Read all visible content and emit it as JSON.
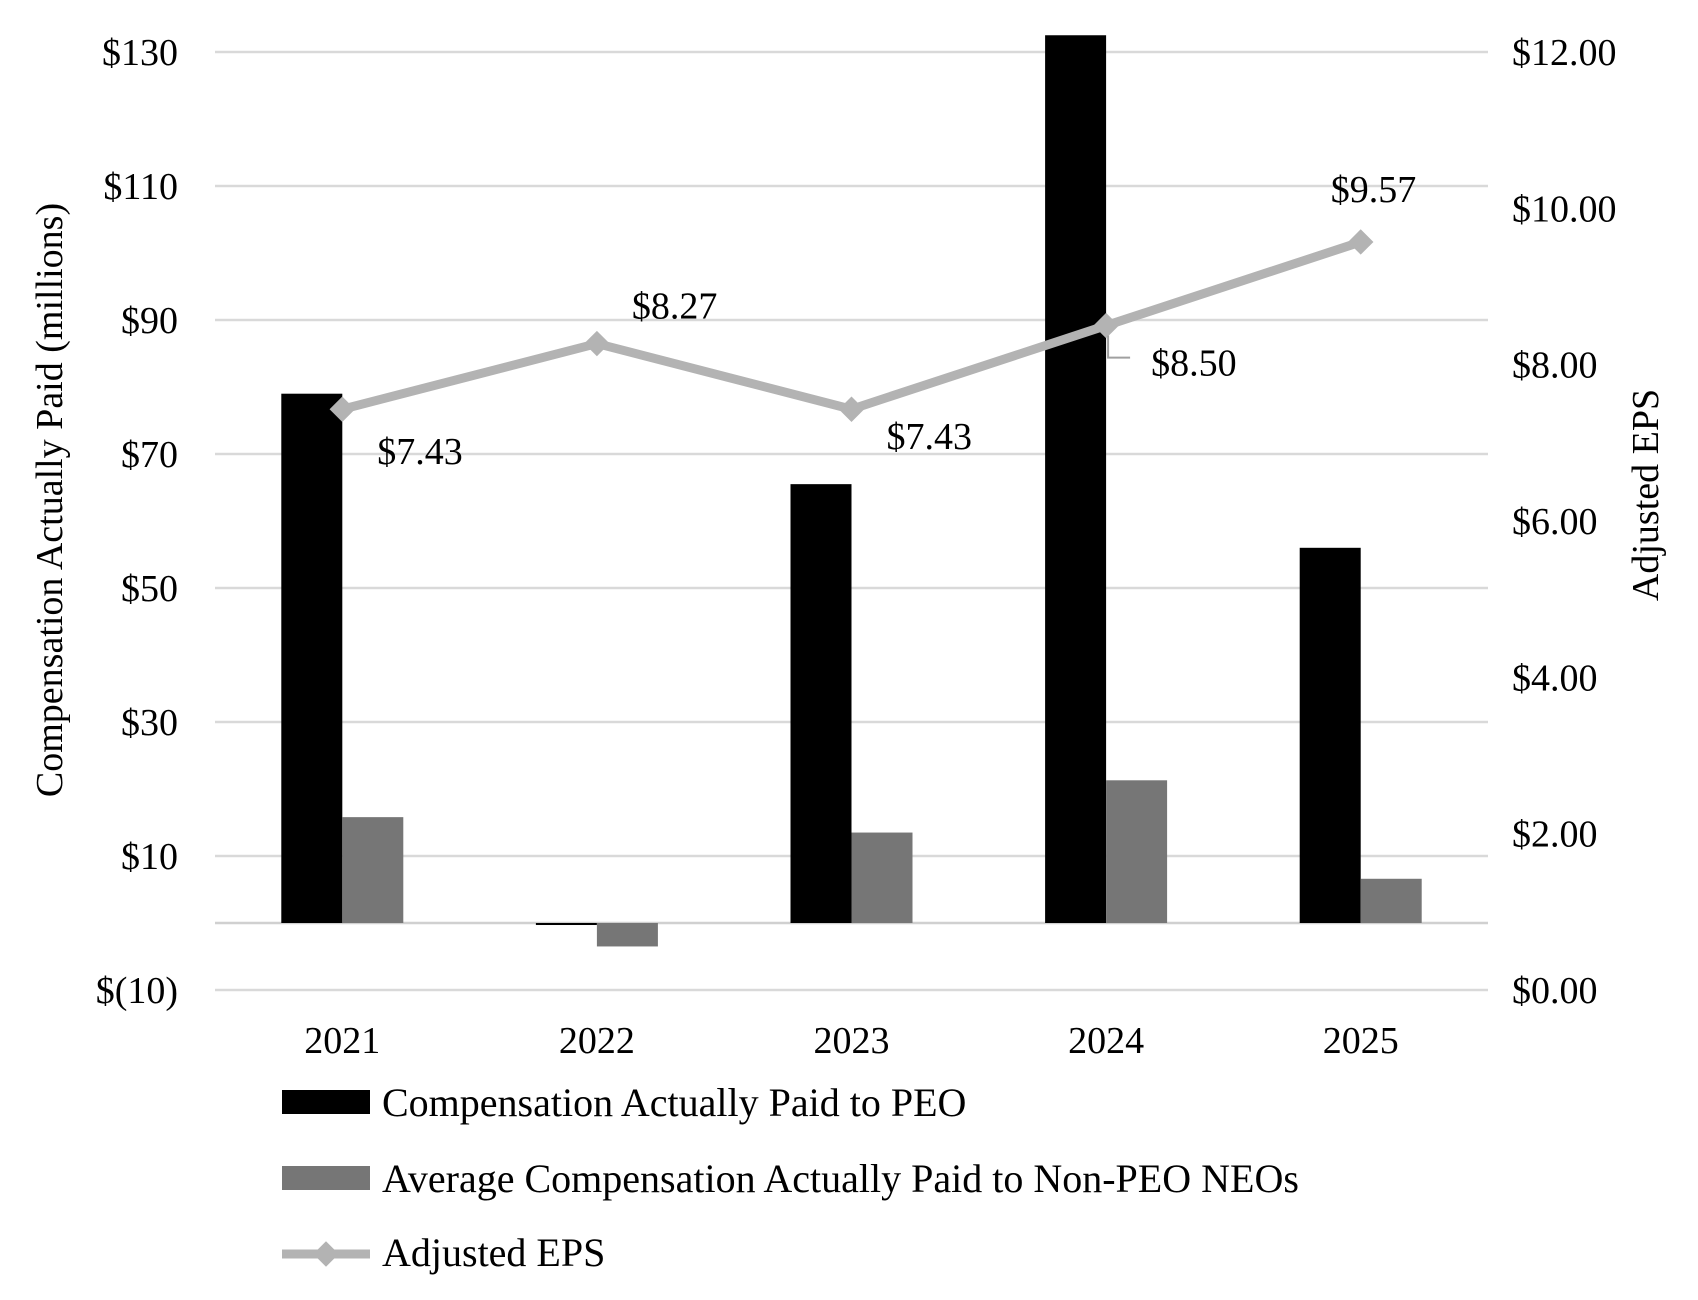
{
  "chart_data": {
    "type": "bar",
    "categories": [
      "2021",
      "2022",
      "2023",
      "2024",
      "2025"
    ],
    "series": [
      {
        "name": "Compensation Actually Paid to PEO",
        "type": "bar",
        "axis": "left",
        "color": "#000000",
        "values": [
          79.0,
          -0.3,
          65.5,
          132.5,
          56.0
        ]
      },
      {
        "name": "Average Compensation Actually Paid to Non-PEO NEOs",
        "type": "bar",
        "axis": "left",
        "color": "#767676",
        "values": [
          15.8,
          -3.5,
          13.5,
          21.3,
          6.6
        ]
      },
      {
        "name": "Adjusted EPS",
        "type": "line",
        "axis": "right",
        "color": "#b3b3b3",
        "values": [
          7.43,
          8.27,
          7.43,
          8.5,
          9.57
        ],
        "labels": [
          "$7.43",
          "$8.27",
          "$7.43",
          "$8.50",
          "$9.57"
        ]
      }
    ],
    "left_axis": {
      "title": "Compensation Actually Paid (millions)",
      "min": -10,
      "max": 130,
      "ticks": [
        -10,
        10,
        30,
        50,
        70,
        90,
        110,
        130
      ],
      "tick_labels": [
        "$(10)",
        "$10",
        "$30",
        "$50",
        "$70",
        "$90",
        "$110",
        "$130"
      ]
    },
    "right_axis": {
      "title": "Adjusted EPS",
      "min": 0,
      "max": 12,
      "ticks": [
        0,
        2,
        4,
        6,
        8,
        10,
        12
      ],
      "tick_labels": [
        "$0.00",
        "$2.00",
        "$4.00",
        "$6.00",
        "$8.00",
        "$10.00",
        "$12.00"
      ]
    },
    "grid": true,
    "legend_position": "bottom-left"
  }
}
